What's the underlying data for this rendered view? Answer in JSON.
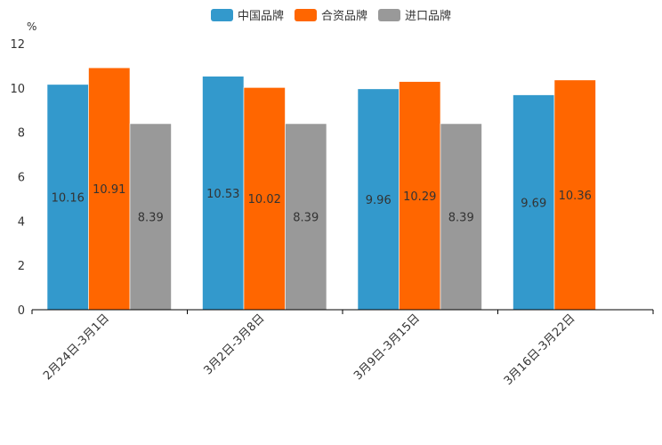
{
  "chart_data": {
    "type": "bar",
    "unit_label": "%",
    "categories": [
      "2月24日-3月1日",
      "3月2日-3月8日",
      "3月9日-3月15日",
      "3月16日-3月22日"
    ],
    "series": [
      {
        "name": "中国品牌",
        "color": "#3399cc",
        "values": [
          10.16,
          10.53,
          9.96,
          9.69
        ]
      },
      {
        "name": "合资品牌",
        "color": "#ff6600",
        "values": [
          10.91,
          10.02,
          10.29,
          10.36
        ]
      },
      {
        "name": "进口品牌",
        "color": "#999999",
        "values": [
          8.39,
          8.39,
          8.39,
          null
        ]
      }
    ],
    "ylim": [
      0,
      12
    ],
    "yticks": [
      0,
      2,
      4,
      6,
      8,
      10,
      12
    ],
    "grid": false,
    "legend": "top-center"
  }
}
